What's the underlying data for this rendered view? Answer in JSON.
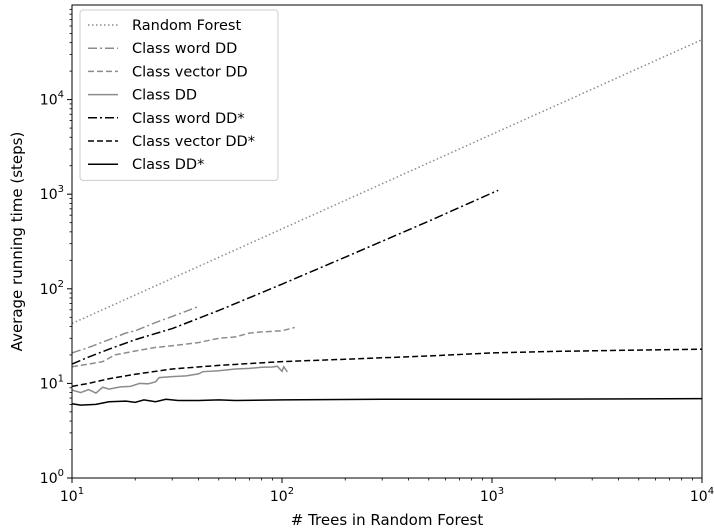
{
  "chart_data": {
    "type": "line",
    "xlabel": "# Trees in Random Forest",
    "ylabel": "Average running time (steps)",
    "xscale": "log",
    "yscale": "log",
    "xlim": [
      10,
      10000
    ],
    "ylim": [
      1,
      100000
    ],
    "xticks": [
      {
        "value": 10,
        "base": "10",
        "exp": "1"
      },
      {
        "value": 100,
        "base": "10",
        "exp": "2"
      },
      {
        "value": 1000,
        "base": "10",
        "exp": "3"
      },
      {
        "value": 10000,
        "base": "10",
        "exp": "4"
      }
    ],
    "yticks": [
      {
        "value": 1,
        "base": "10",
        "exp": "0"
      },
      {
        "value": 10,
        "base": "10",
        "exp": "1"
      },
      {
        "value": 100,
        "base": "10",
        "exp": "2"
      },
      {
        "value": 1000,
        "base": "10",
        "exp": "3"
      },
      {
        "value": 10000,
        "base": "10",
        "exp": "4"
      }
    ],
    "grid": false,
    "legend_position": "top-left",
    "series": [
      {
        "name": "Random Forest",
        "color": "#8c8c8c",
        "dash": "dotted",
        "points": [
          [
            10,
            43
          ],
          [
            20,
            86
          ],
          [
            50,
            215
          ],
          [
            100,
            430
          ],
          [
            200,
            860
          ],
          [
            500,
            2150
          ],
          [
            1000,
            4300
          ],
          [
            2000,
            8600
          ],
          [
            5000,
            21500
          ],
          [
            10000,
            43000
          ]
        ]
      },
      {
        "name": "Class word DD",
        "color": "#8c8c8c",
        "dash": "dashdot",
        "points": [
          [
            10,
            21
          ],
          [
            12,
            24
          ],
          [
            15,
            29
          ],
          [
            18,
            34
          ],
          [
            20,
            36
          ],
          [
            25,
            44
          ],
          [
            30,
            51
          ],
          [
            35,
            58
          ],
          [
            40,
            65
          ]
        ]
      },
      {
        "name": "Class vector DD",
        "color": "#8c8c8c",
        "dash": "dashed",
        "points": [
          [
            10,
            15
          ],
          [
            12,
            16
          ],
          [
            14,
            17
          ],
          [
            16,
            20
          ],
          [
            20,
            22
          ],
          [
            25,
            24
          ],
          [
            30,
            25
          ],
          [
            40,
            27
          ],
          [
            50,
            30
          ],
          [
            60,
            31
          ],
          [
            70,
            34
          ],
          [
            80,
            35
          ],
          [
            100,
            36
          ],
          [
            115,
            39
          ]
        ]
      },
      {
        "name": "Class DD",
        "color": "#8c8c8c",
        "dash": "solid",
        "points": [
          [
            10,
            8.5
          ],
          [
            11,
            8.0
          ],
          [
            12,
            8.6
          ],
          [
            13,
            7.9
          ],
          [
            14,
            9.1
          ],
          [
            15,
            8.7
          ],
          [
            17,
            9.2
          ],
          [
            19,
            9.3
          ],
          [
            21,
            10.0
          ],
          [
            23,
            9.9
          ],
          [
            25,
            10.4
          ],
          [
            26,
            11.5
          ],
          [
            30,
            11.8
          ],
          [
            35,
            12.0
          ],
          [
            40,
            12.6
          ],
          [
            42,
            13.3
          ],
          [
            50,
            13.6
          ],
          [
            60,
            14.2
          ],
          [
            70,
            14.4
          ],
          [
            80,
            14.8
          ],
          [
            90,
            14.9
          ],
          [
            95,
            15.2
          ],
          [
            100,
            13.4
          ],
          [
            102,
            15.0
          ],
          [
            106,
            13.2
          ]
        ]
      },
      {
        "name": "Class word DD*",
        "color": "#000000",
        "dash": "dashdot",
        "points": [
          [
            10,
            16
          ],
          [
            12,
            19
          ],
          [
            15,
            23
          ],
          [
            20,
            29
          ],
          [
            30,
            38
          ],
          [
            50,
            59
          ],
          [
            100,
            112
          ],
          [
            200,
            216
          ],
          [
            500,
            519
          ],
          [
            1000,
            1030
          ],
          [
            1070,
            1100
          ]
        ]
      },
      {
        "name": "Class vector DD*",
        "color": "#000000",
        "dash": "dashed",
        "points": [
          [
            10,
            9.3
          ],
          [
            12,
            10.0
          ],
          [
            15,
            11.2
          ],
          [
            20,
            12.5
          ],
          [
            30,
            14.2
          ],
          [
            50,
            15.5
          ],
          [
            100,
            17.0
          ],
          [
            200,
            18.0
          ],
          [
            500,
            19.5
          ],
          [
            1000,
            21.0
          ],
          [
            2000,
            21.8
          ],
          [
            5000,
            22.5
          ],
          [
            10000,
            23.0
          ]
        ]
      },
      {
        "name": "Class DD*",
        "color": "#000000",
        "dash": "solid",
        "points": [
          [
            10,
            6.1
          ],
          [
            11,
            5.9
          ],
          [
            13,
            6.0
          ],
          [
            15,
            6.4
          ],
          [
            18,
            6.5
          ],
          [
            20,
            6.3
          ],
          [
            22,
            6.7
          ],
          [
            25,
            6.4
          ],
          [
            28,
            6.8
          ],
          [
            32,
            6.6
          ],
          [
            40,
            6.6
          ],
          [
            50,
            6.7
          ],
          [
            60,
            6.6
          ],
          [
            100,
            6.7
          ],
          [
            300,
            6.8
          ],
          [
            1000,
            6.8
          ],
          [
            10000,
            6.9
          ]
        ]
      }
    ]
  }
}
